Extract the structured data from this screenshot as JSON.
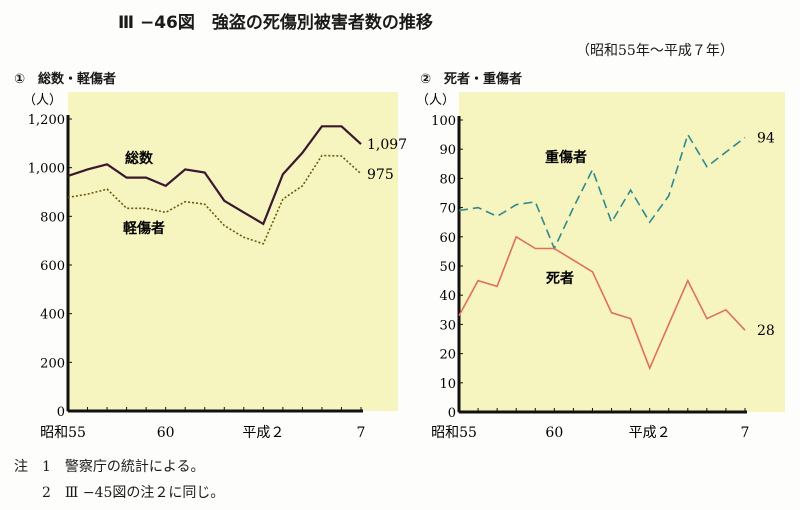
{
  "title": "Ⅲ −46図　強盗の死傷別被害者数の推移",
  "period": "（昭和55年〜平成７年）",
  "notes": [
    "注　1　警察庁の統計による。",
    "　　2　Ⅲ −45図の注２に同じ。"
  ],
  "colors": {
    "background": "#f6f4bf",
    "total": "#3a1830",
    "minor": "#6b5a10",
    "death": "#e0705a",
    "serious": "#2f8a8f"
  },
  "chart_data": [
    {
      "type": "line",
      "title": "①　総数・軽傷者",
      "ylabel": "（人）",
      "ylim": [
        0,
        1200
      ],
      "yticks": [
        0,
        200,
        400,
        600,
        800,
        1000,
        1200
      ],
      "ytick_labels": [
        "0",
        "200",
        "400",
        "600",
        "800",
        "1,000",
        "1,200"
      ],
      "x": [
        "昭和55",
        "56",
        "57",
        "58",
        "59",
        "60",
        "61",
        "62",
        "63",
        "平成元",
        "2",
        "3",
        "4",
        "5",
        "6",
        "7"
      ],
      "xtick_labels": [
        {
          "index": 0,
          "label": "昭和55"
        },
        {
          "index": 5,
          "label": "60"
        },
        {
          "index": 10,
          "label": "平成２"
        },
        {
          "index": 15,
          "label": "7"
        }
      ],
      "series": [
        {
          "name": "総数",
          "style": "solid",
          "color": "#3a1830",
          "values": [
            966,
            993,
            1014,
            959,
            959,
            925,
            993,
            980,
            864,
            816,
            769,
            973,
            1061,
            1170,
            1170,
            1097
          ],
          "end_label": "1,097"
        },
        {
          "name": "軽傷者",
          "style": "dotted",
          "color": "#6b5a10",
          "values": [
            878,
            891,
            912,
            833,
            833,
            816,
            860,
            850,
            762,
            714,
            687,
            871,
            925,
            1050,
            1048,
            975
          ],
          "end_label": "975"
        }
      ]
    },
    {
      "type": "line",
      "title": "②　死者・重傷者",
      "ylabel": "（人）",
      "ylim": [
        0,
        100
      ],
      "yticks": [
        0,
        10,
        20,
        30,
        40,
        50,
        60,
        70,
        80,
        90,
        100
      ],
      "ytick_labels": [
        "0",
        "10",
        "20",
        "30",
        "40",
        "50",
        "60",
        "70",
        "80",
        "90",
        "100"
      ],
      "x": [
        "昭和55",
        "56",
        "57",
        "58",
        "59",
        "60",
        "61",
        "62",
        "63",
        "平成元",
        "2",
        "3",
        "4",
        "5",
        "6",
        "7"
      ],
      "xtick_labels": [
        {
          "index": 0,
          "label": "昭和55"
        },
        {
          "index": 5,
          "label": "60"
        },
        {
          "index": 10,
          "label": "平成２"
        },
        {
          "index": 15,
          "label": "7"
        }
      ],
      "series": [
        {
          "name": "重傷者",
          "style": "dashed",
          "color": "#2f8a8f",
          "values": [
            69,
            70,
            67,
            71,
            72,
            56,
            70,
            83,
            65,
            76,
            65,
            74,
            95,
            84,
            89,
            94
          ],
          "end_label": "94"
        },
        {
          "name": "死者",
          "style": "solid",
          "color": "#e0705a",
          "values": [
            33,
            45,
            43,
            60,
            56,
            56,
            52,
            48,
            34,
            32,
            15,
            30,
            45,
            32,
            35,
            28
          ],
          "end_label": "28"
        }
      ]
    }
  ]
}
